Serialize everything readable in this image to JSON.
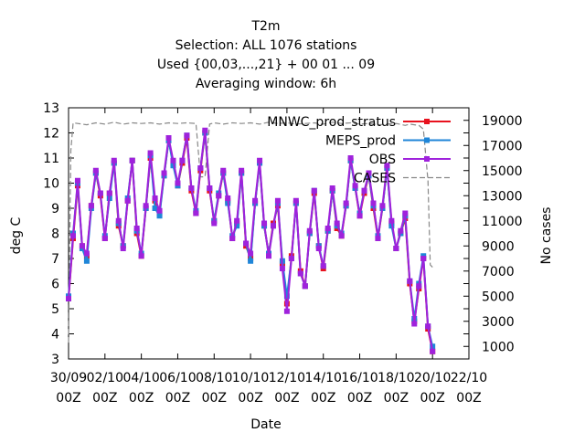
{
  "title_lines": [
    "T2m",
    "Selection: ALL    1076 stations",
    "Used {00,03,...,21} + 00 01 ... 09",
    "Averaging window:  6h"
  ],
  "chart_data": {
    "type": "line",
    "xlabel": "Date",
    "ylabel": "deg C",
    "y2label": "No cases",
    "x_ticks": [
      {
        "line1": "30/09",
        "line2": "00Z"
      },
      {
        "line1": "02/10",
        "line2": "00Z"
      },
      {
        "line1": "04/10",
        "line2": "00Z"
      },
      {
        "line1": "06/10",
        "line2": "00Z"
      },
      {
        "line1": "08/10",
        "line2": "00Z"
      },
      {
        "line1": "10/10",
        "line2": "00Z"
      },
      {
        "line1": "12/10",
        "line2": "00Z"
      },
      {
        "line1": "14/10",
        "line2": "00Z"
      },
      {
        "line1": "16/10",
        "line2": "00Z"
      },
      {
        "line1": "18/10",
        "line2": "00Z"
      },
      {
        "line1": "20/10",
        "line2": "00Z"
      },
      {
        "line1": "22/10",
        "line2": "00Z"
      }
    ],
    "xlim_hours": [
      0,
      528
    ],
    "ylim": [
      3,
      13
    ],
    "y_ticks": [
      "3",
      "4",
      "5",
      "6",
      "7",
      "8",
      "9",
      "10",
      "11",
      "12",
      "13"
    ],
    "y2lim": [
      0,
      20000
    ],
    "y2_ticks": [
      "1000",
      "3000",
      "5000",
      "7000",
      "9000",
      "11000",
      "13000",
      "15000",
      "17000",
      "19000"
    ],
    "legend_position": "top-right",
    "grid": false,
    "hours": [
      0,
      6,
      12,
      18,
      24,
      30,
      36,
      42,
      48,
      54,
      60,
      66,
      72,
      78,
      84,
      90,
      96,
      102,
      108,
      114,
      120,
      126,
      132,
      138,
      144,
      150,
      156,
      162,
      168,
      174,
      180,
      186,
      192,
      198,
      204,
      210,
      216,
      222,
      228,
      234,
      240,
      246,
      252,
      258,
      264,
      270,
      276,
      282,
      288,
      294,
      300,
      306,
      312,
      318,
      324,
      330,
      336,
      342,
      348,
      354,
      360,
      366,
      372,
      378,
      384,
      390,
      396,
      402,
      408,
      414,
      420,
      426,
      432,
      438,
      444,
      450,
      456,
      462,
      468,
      474,
      480
    ],
    "series": [
      {
        "name": "MNWC_prod_stratus",
        "color": "#e8121e",
        "values": [
          5.4,
          7.8,
          9.9,
          7.5,
          7.1,
          9.1,
          10.4,
          9.5,
          7.8,
          9.6,
          10.8,
          8.3,
          7.5,
          9.3,
          10.9,
          8.0,
          7.1,
          9.0,
          11.0,
          9.3,
          8.8,
          10.3,
          11.7,
          10.8,
          9.9,
          10.8,
          11.8,
          9.7,
          8.8,
          10.5,
          12.0,
          9.7,
          8.5,
          9.5,
          10.4,
          9.3,
          7.8,
          8.4,
          10.4,
          7.5,
          7.0,
          9.2,
          10.8,
          8.3,
          7.2,
          8.4,
          9.1,
          6.8,
          5.2,
          7.1,
          9.2,
          6.5,
          5.9,
          8.0,
          9.6,
          7.5,
          6.6,
          8.1,
          9.7,
          8.2,
          7.9,
          9.1,
          10.9,
          9.8,
          8.7,
          9.6,
          10.3,
          9.0,
          7.8,
          9.0,
          10.6,
          8.4,
          7.4,
          8.0,
          8.6,
          6.0,
          4.5,
          5.8,
          7.0,
          4.2,
          3.3
        ]
      },
      {
        "name": "MEPS_prod",
        "color": "#1f86d8",
        "values": [
          5.5,
          8.0,
          10.0,
          7.4,
          6.9,
          9.0,
          10.4,
          9.6,
          7.9,
          9.4,
          10.8,
          8.4,
          7.5,
          9.4,
          10.9,
          8.1,
          7.2,
          9.0,
          11.1,
          9.0,
          8.7,
          10.3,
          11.7,
          10.7,
          9.9,
          10.9,
          11.9,
          9.8,
          8.9,
          10.6,
          12.0,
          9.8,
          8.5,
          9.6,
          10.4,
          9.2,
          7.9,
          8.3,
          10.4,
          7.6,
          6.9,
          9.2,
          10.8,
          8.3,
          7.2,
          8.3,
          9.2,
          6.9,
          5.5,
          7.0,
          9.2,
          6.4,
          5.9,
          8.0,
          9.7,
          7.5,
          6.7,
          8.1,
          9.7,
          8.3,
          8.0,
          9.1,
          10.9,
          9.8,
          8.8,
          9.7,
          10.3,
          9.1,
          7.9,
          9.0,
          10.6,
          8.3,
          7.4,
          8.0,
          8.7,
          6.1,
          4.6,
          6.0,
          7.1,
          4.3,
          3.5
        ]
      },
      {
        "name": "OBS",
        "color": "#9f22dc",
        "values": [
          5.4,
          7.9,
          10.1,
          7.5,
          7.2,
          9.1,
          10.5,
          9.6,
          7.8,
          9.6,
          10.9,
          8.5,
          7.4,
          9.3,
          10.9,
          8.2,
          7.1,
          9.1,
          11.2,
          9.4,
          8.9,
          10.4,
          11.8,
          10.9,
          10.0,
          10.9,
          11.9,
          9.8,
          8.8,
          10.6,
          12.1,
          9.8,
          8.4,
          9.5,
          10.5,
          9.4,
          7.8,
          8.5,
          10.5,
          7.6,
          7.2,
          9.3,
          10.9,
          8.4,
          7.1,
          8.3,
          9.3,
          6.6,
          4.9,
          7.0,
          9.3,
          6.4,
          5.9,
          8.1,
          9.7,
          7.4,
          6.7,
          8.2,
          9.8,
          8.4,
          7.9,
          9.2,
          11.0,
          9.9,
          8.7,
          9.7,
          10.4,
          9.2,
          7.8,
          9.1,
          10.7,
          8.5,
          7.4,
          8.1,
          8.8,
          6.1,
          4.4,
          5.9,
          7.0,
          4.3,
          3.3
        ]
      }
    ],
    "cases_series": {
      "name": "CASES",
      "color": "#888888",
      "hours": [
        0,
        3,
        6,
        12,
        24,
        36,
        48,
        60,
        72,
        84,
        96,
        108,
        120,
        132,
        144,
        156,
        168,
        174,
        180,
        186,
        192,
        204,
        216,
        228,
        240,
        252,
        264,
        276,
        288,
        300,
        312,
        324,
        336,
        348,
        360,
        372,
        384,
        396,
        408,
        420,
        432,
        444,
        450,
        456,
        462,
        468,
        474,
        477,
        480
      ],
      "values": [
        1300,
        16600,
        18800,
        18750,
        18650,
        18800,
        18700,
        18850,
        18700,
        18800,
        18750,
        18800,
        18700,
        18800,
        18750,
        18800,
        18750,
        14500,
        14500,
        18700,
        18800,
        18700,
        18800,
        18750,
        18800,
        18700,
        18850,
        18750,
        18800,
        18700,
        18750,
        18800,
        18700,
        18850,
        18750,
        18800,
        18700,
        18750,
        18650,
        18700,
        18750,
        18600,
        18700,
        18650,
        18600,
        18300,
        14200,
        7500,
        7300
      ]
    },
    "legend_entries": [
      {
        "label": "MNWC_prod_stratus",
        "color": "#e8121e",
        "style": "solid",
        "marker": "square"
      },
      {
        "label": "MEPS_prod",
        "color": "#1f86d8",
        "style": "solid",
        "marker": "square"
      },
      {
        "label": "OBS",
        "color": "#9f22dc",
        "style": "solid",
        "marker": "square"
      },
      {
        "label": "CASES",
        "color": "#888888",
        "style": "dashed",
        "marker": "none"
      }
    ]
  }
}
